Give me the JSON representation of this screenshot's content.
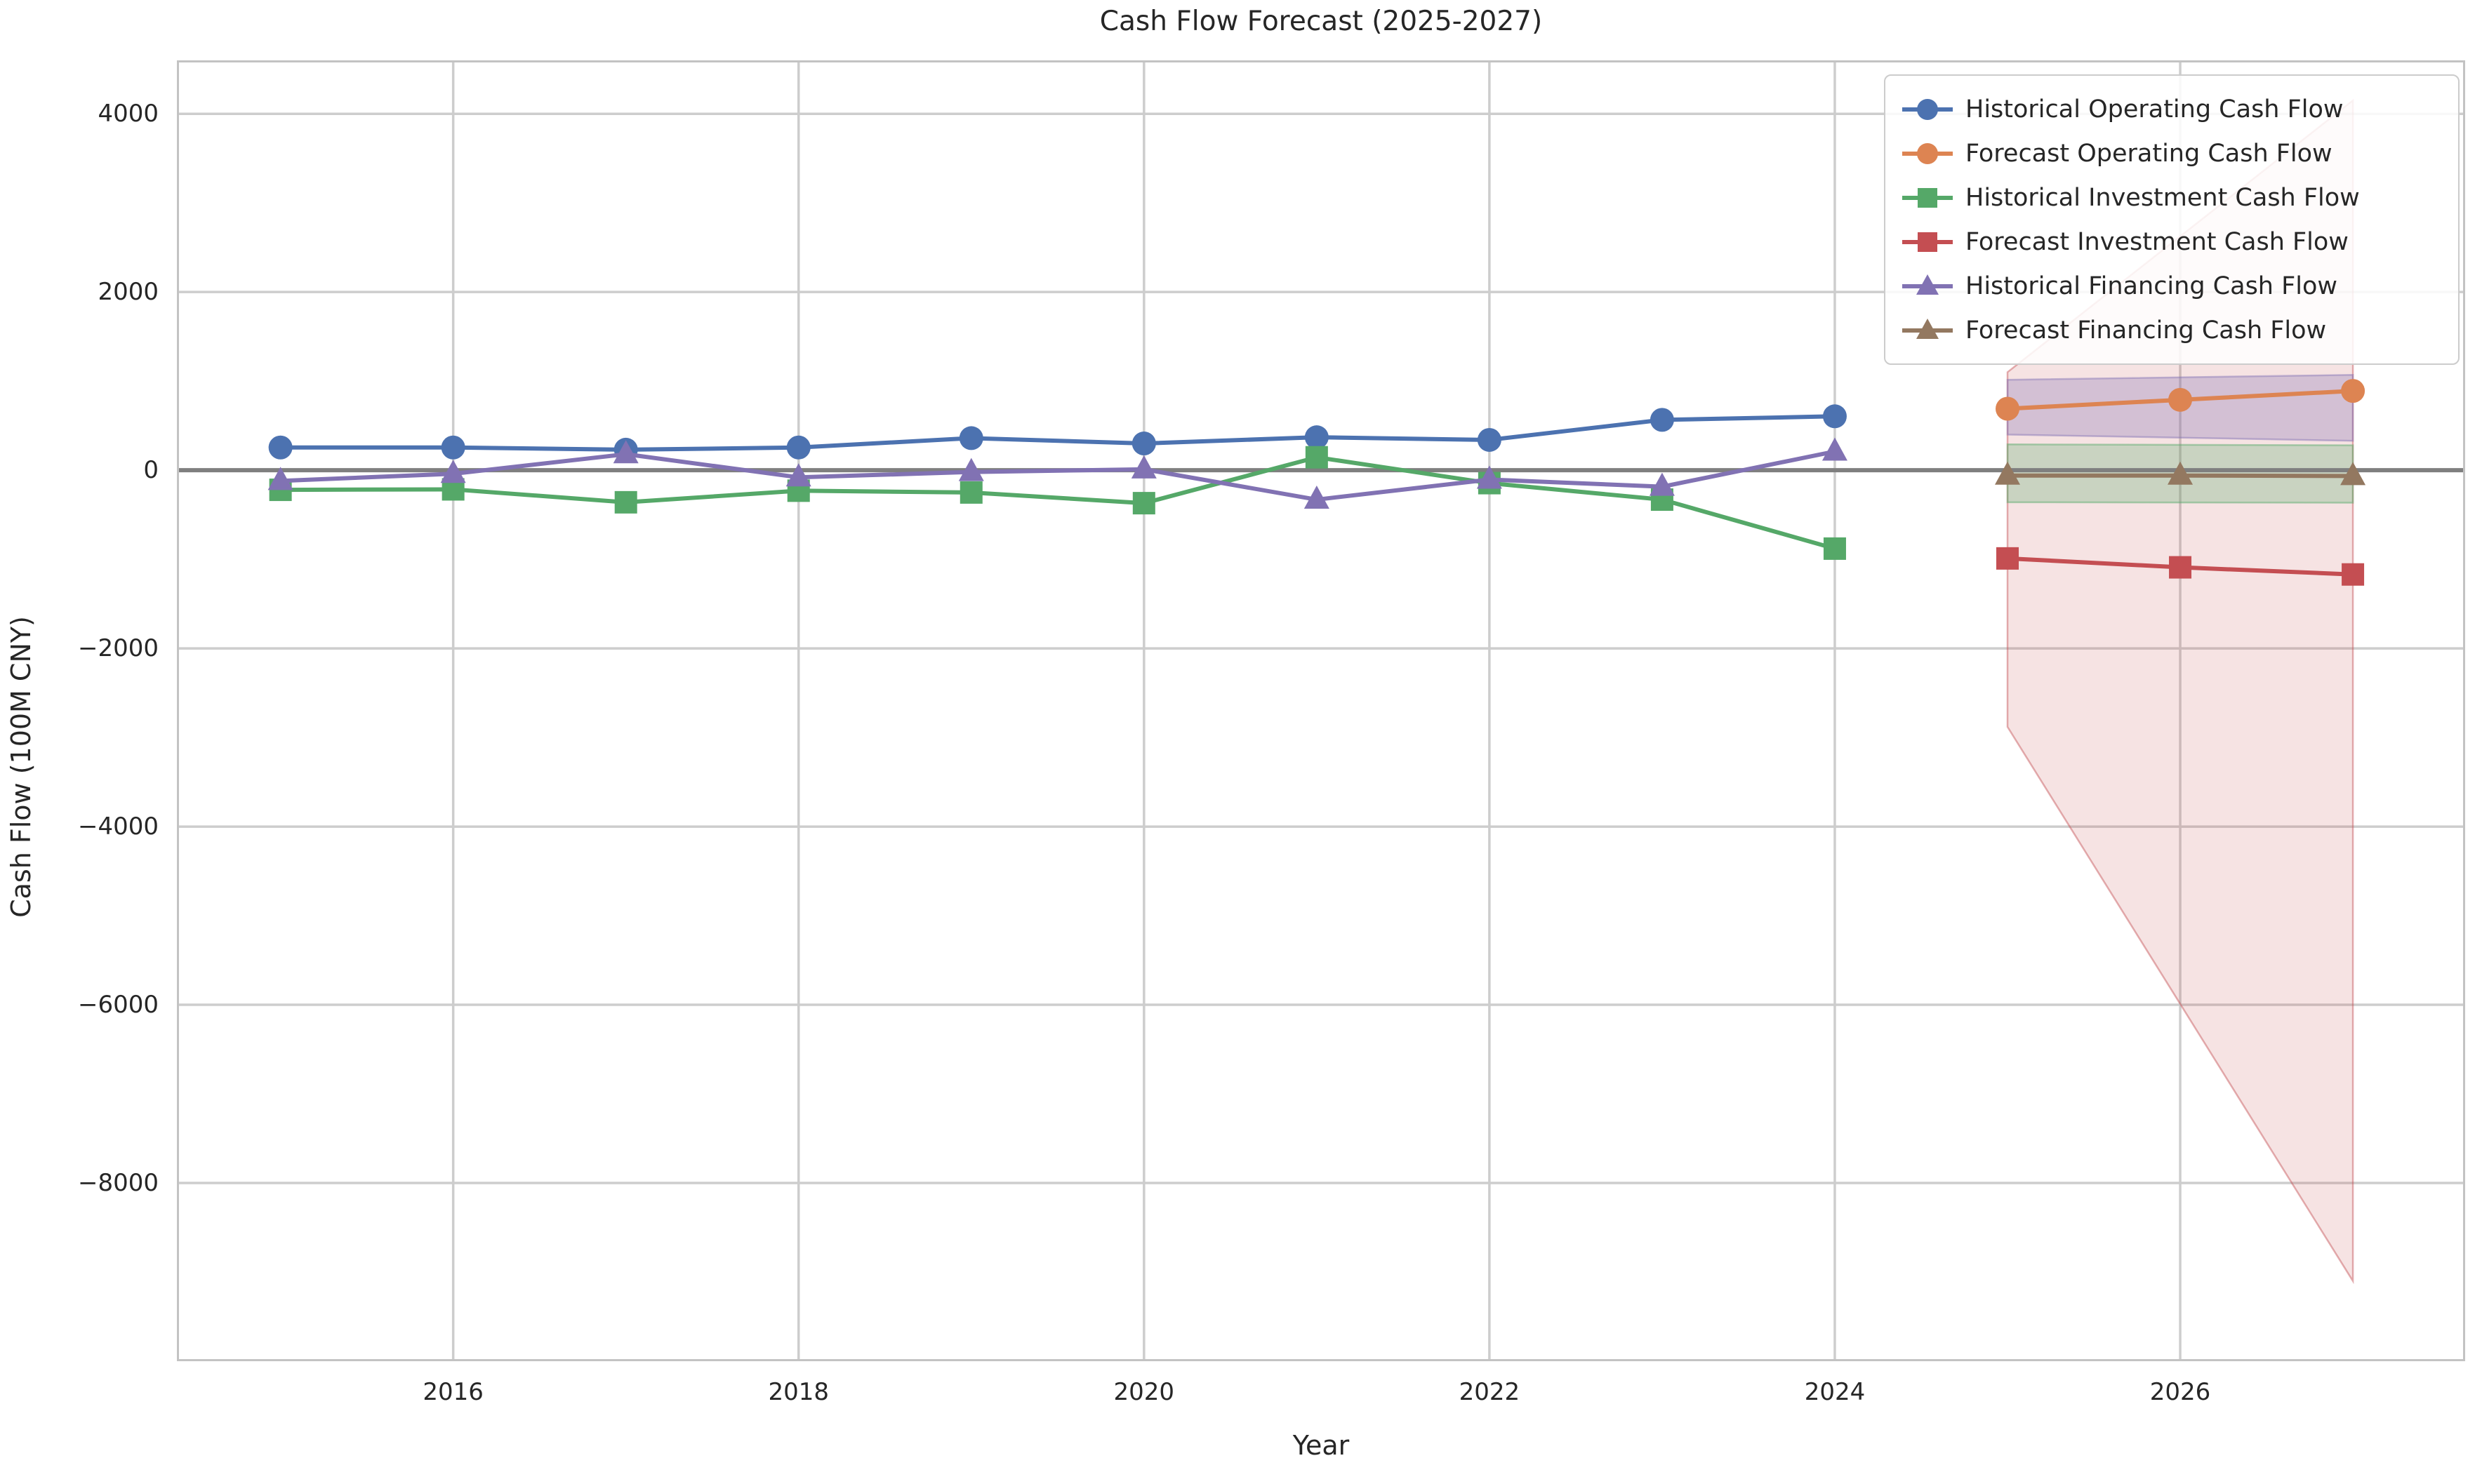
{
  "title": "Cash Flow Forecast (2025-2027)",
  "axes": {
    "xlabel": "Year",
    "ylabel": "Cash Flow (100M CNY)",
    "xlim": [
      2014.4,
      2027.65
    ],
    "ylim": [
      -10000,
      4600
    ],
    "xticks": [
      2016,
      2018,
      2020,
      2022,
      2024,
      2026
    ],
    "ytick_values": [
      4000,
      2000,
      0,
      -2000,
      -4000,
      -6000,
      -8000
    ],
    "ytick_labels": [
      "4000",
      "2000",
      "0",
      "−2000",
      "−4000",
      "−6000",
      "−8000"
    ],
    "grid": true,
    "zero_line_value": 0
  },
  "chart_data": {
    "type": "line",
    "title": "Cash Flow Forecast (2025-2027)",
    "xlabel": "Year",
    "ylabel": "Cash Flow (100M CNY)",
    "legend_position": "upper right",
    "series": [
      {
        "name": "Historical Operating Cash Flow",
        "role": "historical-operating",
        "color": "#4C72B0",
        "marker": "circle",
        "x": [
          2015,
          2016,
          2017,
          2018,
          2019,
          2020,
          2021,
          2022,
          2023,
          2024
        ],
        "y": [
          255,
          255,
          230,
          255,
          360,
          300,
          370,
          340,
          565,
          605
        ]
      },
      {
        "name": "Forecast Operating Cash Flow",
        "role": "forecast-operating",
        "color": "#DD8452",
        "marker": "circle",
        "x": [
          2025,
          2026,
          2027
        ],
        "y": [
          690,
          790,
          890
        ]
      },
      {
        "name": "Historical Investment Cash Flow",
        "role": "historical-investment",
        "color": "#55A868",
        "marker": "square",
        "x": [
          2015,
          2016,
          2017,
          2018,
          2019,
          2020,
          2021,
          2022,
          2023,
          2024
        ],
        "y": [
          -220,
          -215,
          -360,
          -230,
          -250,
          -370,
          145,
          -145,
          -330,
          -880
        ]
      },
      {
        "name": "Forecast Investment Cash Flow",
        "role": "forecast-investment",
        "color": "#C44E52",
        "marker": "square",
        "x": [
          2025,
          2026,
          2027
        ],
        "y": [
          -990,
          -1090,
          -1170
        ]
      },
      {
        "name": "Historical Financing Cash Flow",
        "role": "historical-financing",
        "color": "#8172B3",
        "marker": "triangle",
        "x": [
          2015,
          2016,
          2017,
          2018,
          2019,
          2020,
          2021,
          2022,
          2023,
          2024
        ],
        "y": [
          -120,
          -40,
          180,
          -80,
          -20,
          10,
          -330,
          -105,
          -185,
          210
        ]
      },
      {
        "name": "Forecast Financing Cash Flow",
        "role": "forecast-financing",
        "color": "#937860",
        "marker": "triangle",
        "x": [
          2025,
          2026,
          2027
        ],
        "y": [
          -60,
          -60,
          -65
        ]
      }
    ],
    "bands": [
      {
        "name": "forecast-investment-confidence-band",
        "color": "#C44E52",
        "fill_opacity": 0.16,
        "x": [
          2025,
          2027
        ],
        "upper": [
          1100,
          4150
        ],
        "lower": [
          -2880,
          -9100
        ]
      },
      {
        "name": "forecast-operating-confidence-band",
        "color": "#8172B3",
        "fill_opacity": 0.3,
        "x": [
          2025,
          2027
        ],
        "upper": [
          1015,
          1070
        ],
        "lower": [
          400,
          330
        ]
      },
      {
        "name": "forecast-financing-confidence-band",
        "color": "#55A868",
        "fill_opacity": 0.28,
        "x": [
          2025,
          2027
        ],
        "upper": [
          290,
          280
        ],
        "lower": [
          -360,
          -365
        ]
      }
    ]
  },
  "legend": {
    "entries": [
      {
        "label": "Historical Operating Cash Flow",
        "color": "#4C72B0",
        "marker": "circle"
      },
      {
        "label": "Forecast Operating Cash Flow",
        "color": "#DD8452",
        "marker": "circle"
      },
      {
        "label": "Historical Investment Cash Flow",
        "color": "#55A868",
        "marker": "square"
      },
      {
        "label": "Forecast Investment Cash Flow",
        "color": "#C44E52",
        "marker": "square"
      },
      {
        "label": "Historical Financing Cash Flow",
        "color": "#8172B3",
        "marker": "triangle"
      },
      {
        "label": "Forecast Financing Cash Flow",
        "color": "#937860",
        "marker": "triangle"
      }
    ]
  },
  "style": {
    "background_color": "#ffffff",
    "grid_color": "#cdcdcd",
    "spine_color": "#c3c3c3",
    "zero_line_color": "#7f7f7f",
    "text_color": "#262626"
  }
}
